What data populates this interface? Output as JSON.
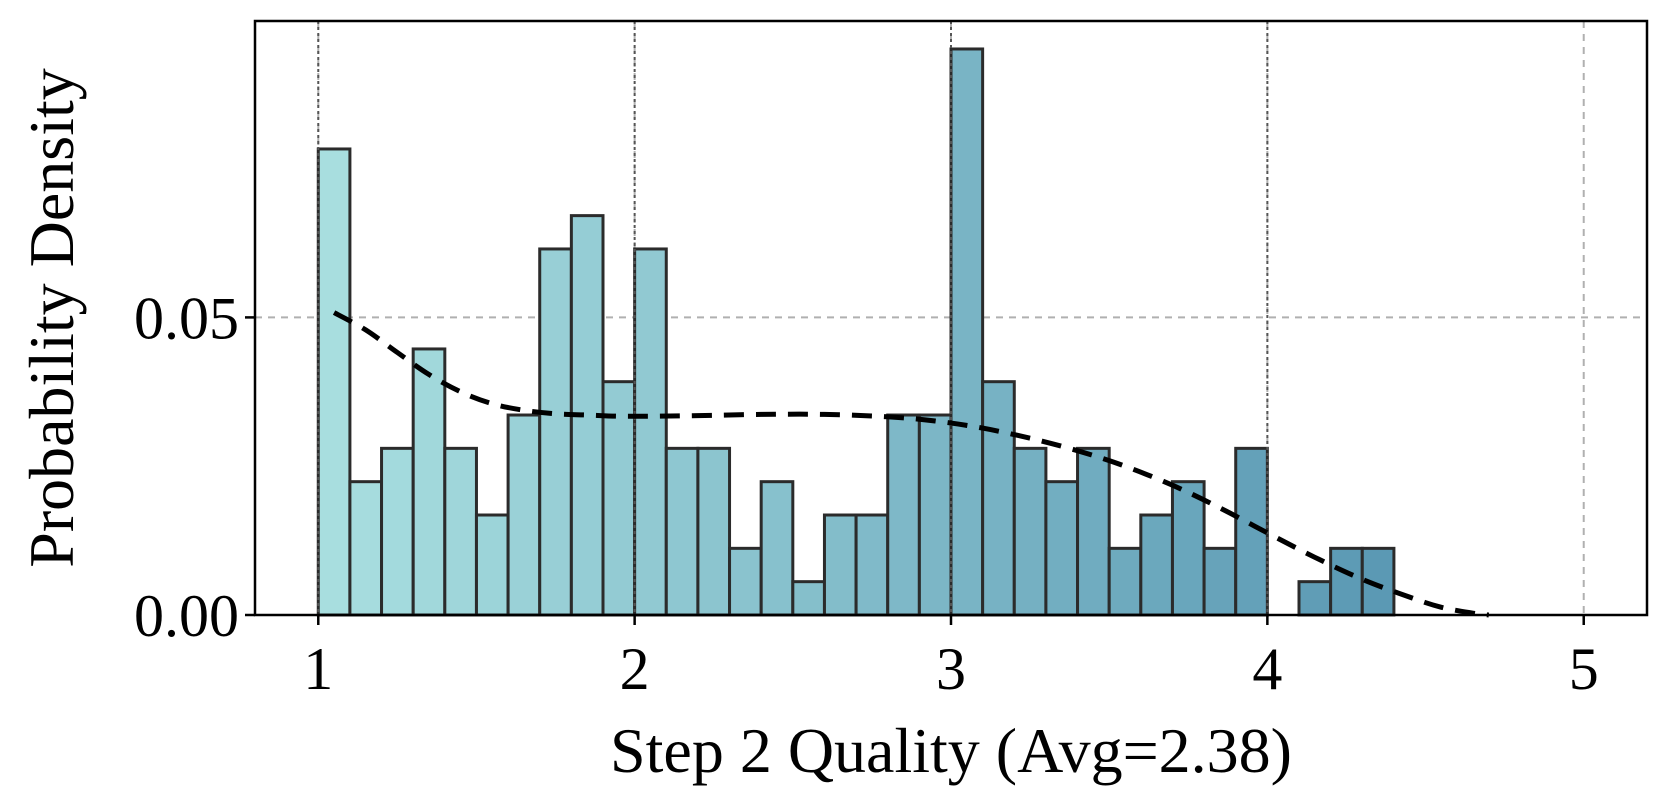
{
  "chart_data": {
    "type": "bar",
    "title": "",
    "xlabel": "Step 2 Quality (Avg=2.38)",
    "ylabel": "Probability Density",
    "xlim": [
      0.8,
      5.2
    ],
    "ylim": [
      0,
      0.0998
    ],
    "x_ticks": [
      "1",
      "2",
      "3",
      "4",
      "5"
    ],
    "x_tick_values": [
      1,
      2,
      3,
      4,
      5
    ],
    "y_ticks": [
      "0.00",
      "0.05"
    ],
    "y_tick_values": [
      0,
      0.05
    ],
    "grid": true,
    "reference_lines_x": [
      1,
      2,
      3,
      4
    ],
    "bin_width": 0.1,
    "bin_starts": [
      1.0,
      1.1,
      1.2,
      1.3,
      1.4,
      1.5,
      1.6,
      1.7,
      1.8,
      1.9,
      2.0,
      2.1,
      2.2,
      2.3,
      2.4,
      2.5,
      2.6,
      2.7,
      2.8,
      2.9,
      3.0,
      3.1,
      3.2,
      3.3,
      3.4,
      3.5,
      3.6,
      3.7,
      3.8,
      3.9,
      4.0,
      4.1,
      4.2,
      4.3
    ],
    "values": [
      0.0783,
      0.0224,
      0.028,
      0.0447,
      0.028,
      0.0168,
      0.0336,
      0.0615,
      0.0671,
      0.0392,
      0.0615,
      0.028,
      0.028,
      0.0112,
      0.0224,
      0.0056,
      0.0168,
      0.0168,
      0.0336,
      0.0336,
      0.0951,
      0.0392,
      0.028,
      0.0224,
      0.028,
      0.0112,
      0.0168,
      0.0224,
      0.0112,
      0.028,
      0.0,
      0.0056,
      0.0112,
      0.0112
    ],
    "kde": {
      "x": [
        1.05,
        1.15,
        1.25,
        1.35,
        1.45,
        1.55,
        1.65,
        1.75,
        1.85,
        1.95,
        2.05,
        2.2,
        2.4,
        2.6,
        2.8,
        2.95,
        3.1,
        3.25,
        3.4,
        3.55,
        3.7,
        3.85,
        4.0,
        4.15,
        4.3,
        4.45,
        4.55,
        4.65,
        4.7
      ],
      "y": [
        0.0508,
        0.0479,
        0.0441,
        0.0404,
        0.0375,
        0.0355,
        0.0344,
        0.0338,
        0.0336,
        0.0334,
        0.0334,
        0.0335,
        0.0337,
        0.0337,
        0.0333,
        0.0326,
        0.0314,
        0.0297,
        0.0276,
        0.025,
        0.0218,
        0.018,
        0.0138,
        0.0097,
        0.006,
        0.003,
        0.0013,
        0.0003,
        0.0
      ]
    },
    "colors": {
      "bar_start": "#a9dfe0",
      "bar_end": "#5a98b3",
      "bar_edge": "#2b2b2b",
      "kde_line": "#000000",
      "grid": "#b0b0b0"
    }
  }
}
